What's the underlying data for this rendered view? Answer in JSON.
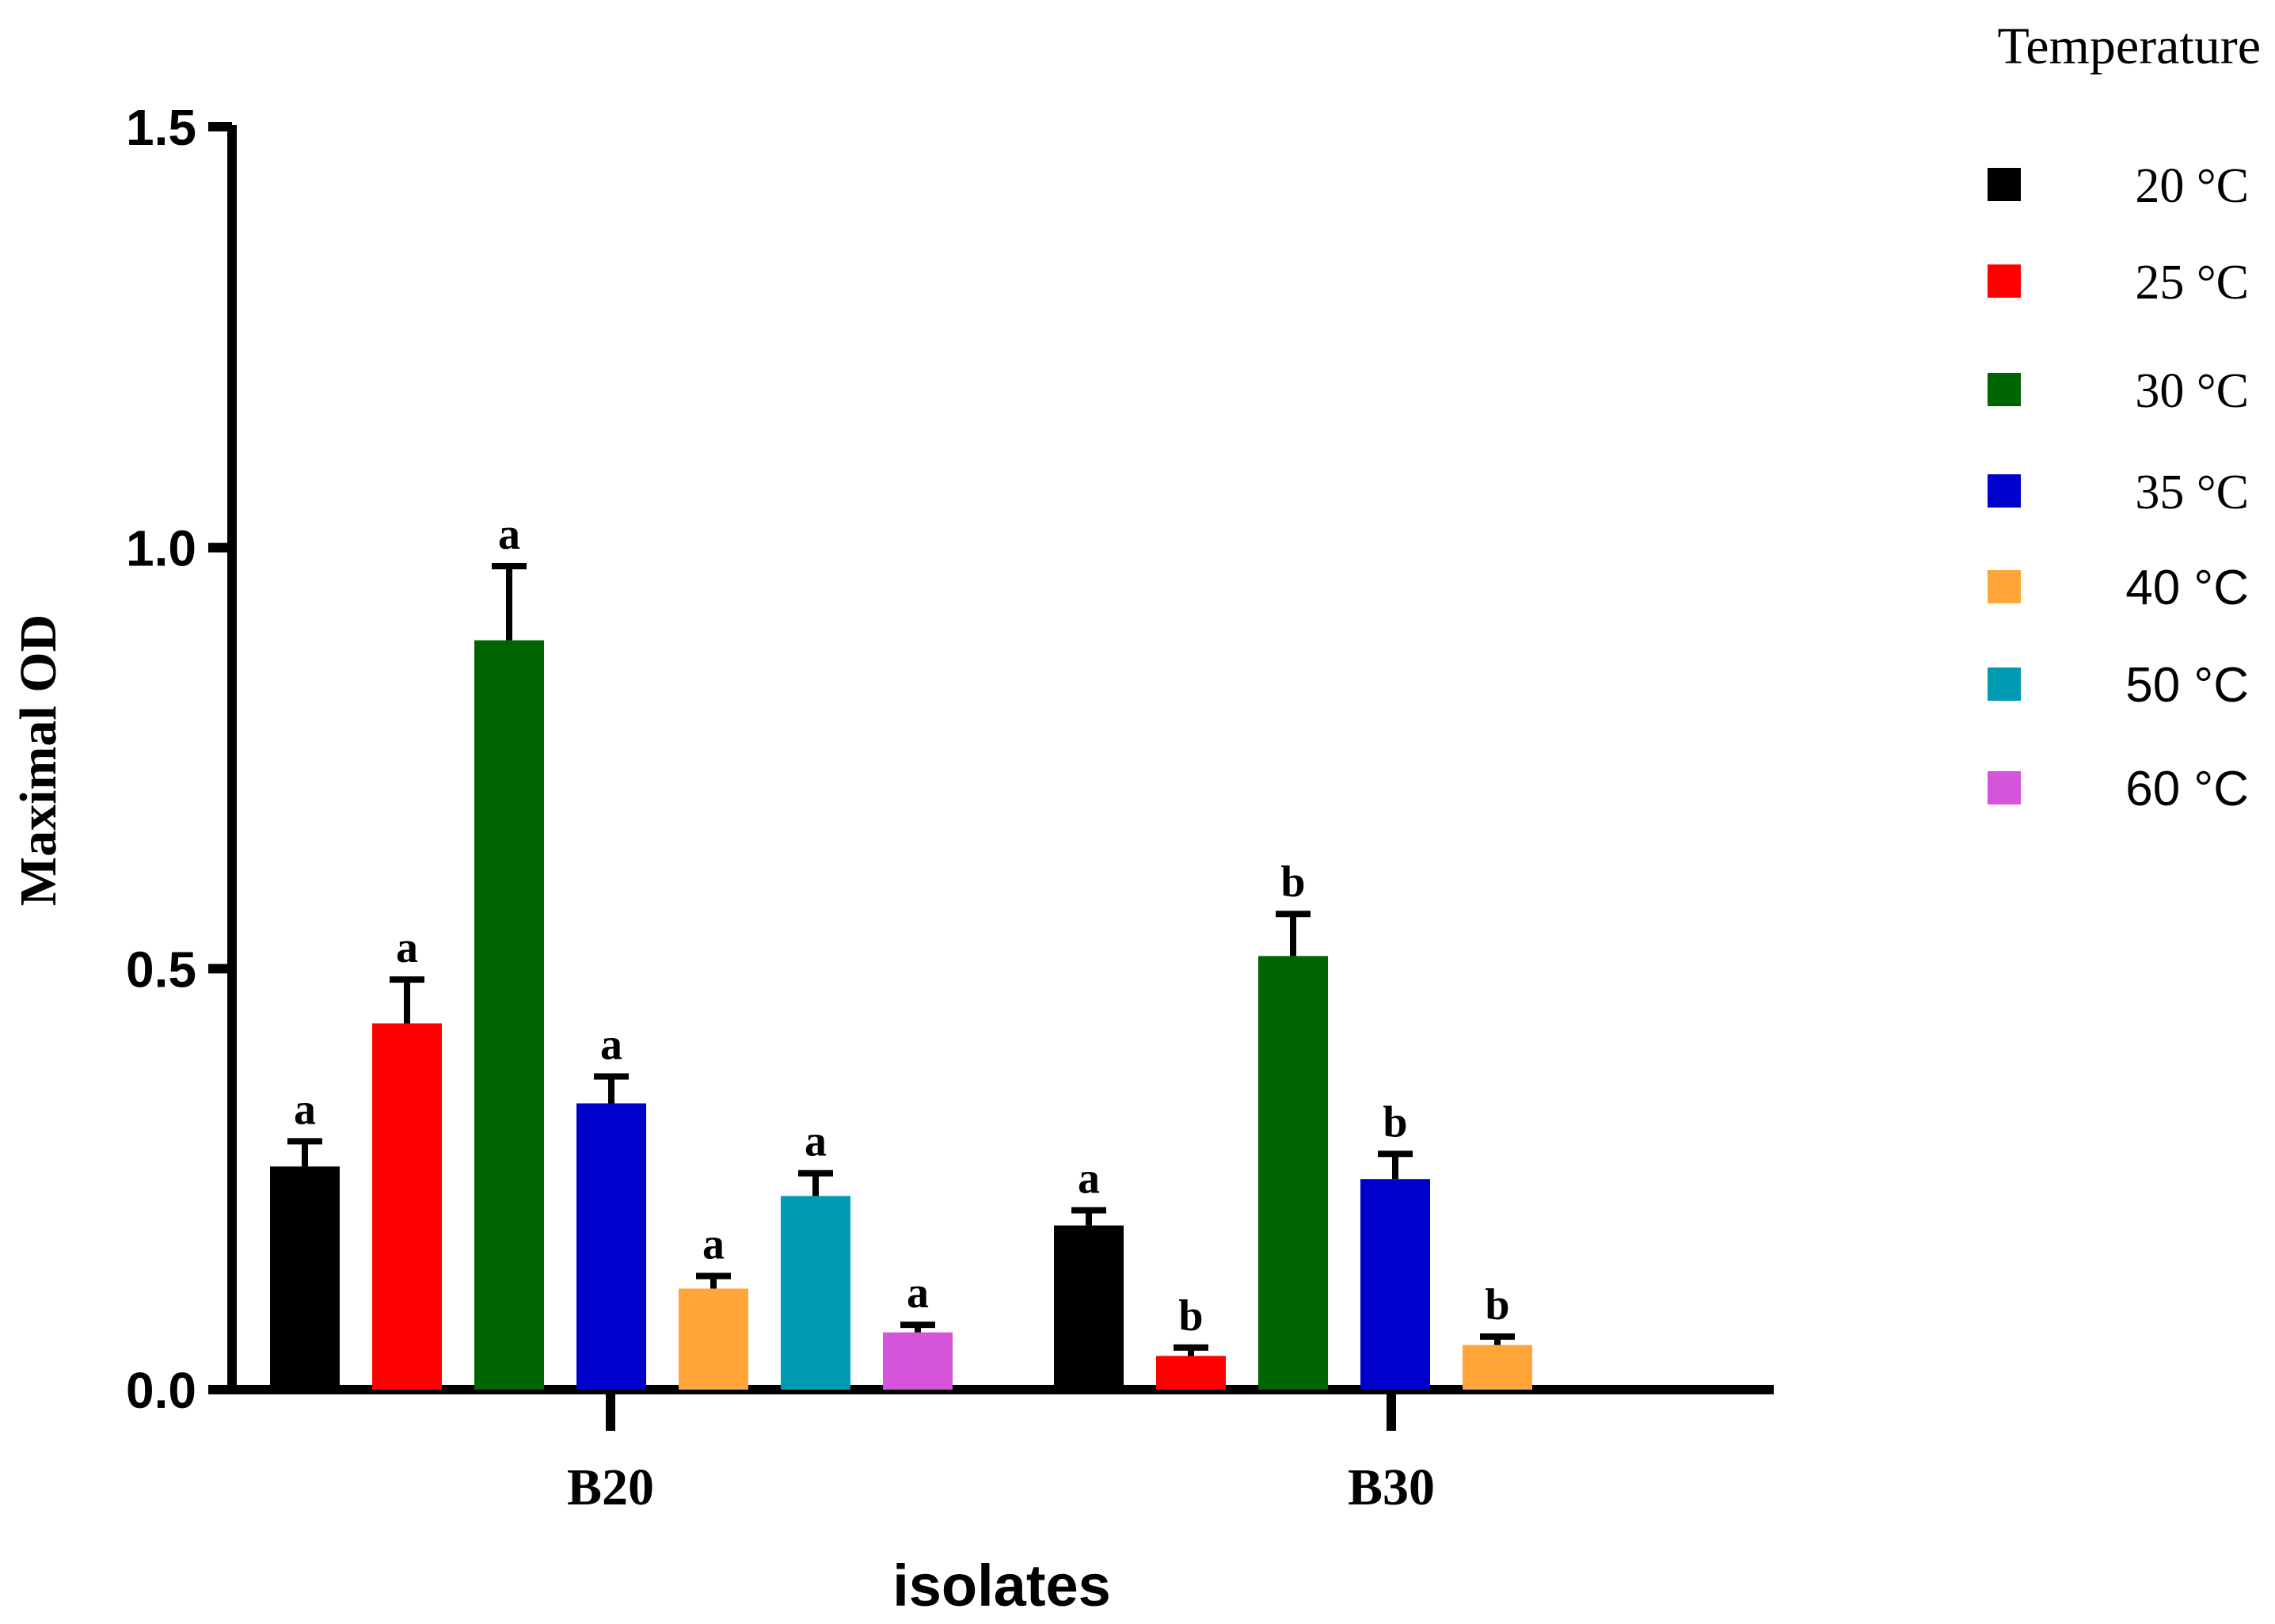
{
  "chart_data": {
    "type": "bar",
    "title": "",
    "xlabel": "isolates",
    "ylabel": "Maximal OD",
    "ylim": [
      0,
      1.5
    ],
    "yticks": [
      "0.0",
      "0.5",
      "1.0",
      "1.5"
    ],
    "ytick_values": [
      0,
      0.5,
      1.0,
      1.5
    ],
    "categories": [
      "B20",
      "B30"
    ],
    "legend_title": "Temperature",
    "series": [
      {
        "name": "20 °C",
        "color": "#000000",
        "values": [
          0.265,
          0.195
        ],
        "errors": [
          0.03,
          0.018
        ],
        "labels": [
          "a",
          "a"
        ]
      },
      {
        "name": "25 °C",
        "color": "#ff0000",
        "values": [
          0.435,
          0.04
        ],
        "errors": [
          0.052,
          0.01
        ],
        "labels": [
          "a",
          "b"
        ]
      },
      {
        "name": "30 °C",
        "color": "#006400",
        "values": [
          0.89,
          0.515
        ],
        "errors": [
          0.088,
          0.05
        ],
        "labels": [
          "a",
          "b"
        ]
      },
      {
        "name": "35 °C",
        "color": "#0000cc",
        "values": [
          0.34,
          0.25
        ],
        "errors": [
          0.032,
          0.03
        ],
        "labels": [
          "a",
          "b"
        ]
      },
      {
        "name": "40 °C",
        "color": "#ffa53a",
        "values": [
          0.12,
          0.053
        ],
        "errors": [
          0.015,
          0.01
        ],
        "labels": [
          "a",
          "b"
        ]
      },
      {
        "name": "50 °C",
        "color": "#009ab3",
        "values": [
          0.23,
          null
        ],
        "errors": [
          0.027,
          null
        ],
        "labels": [
          "a",
          ""
        ]
      },
      {
        "name": "60 °C",
        "color": "#d455d9",
        "values": [
          0.068,
          null
        ],
        "errors": [
          0.009,
          null
        ],
        "labels": [
          "a",
          ""
        ]
      }
    ]
  }
}
